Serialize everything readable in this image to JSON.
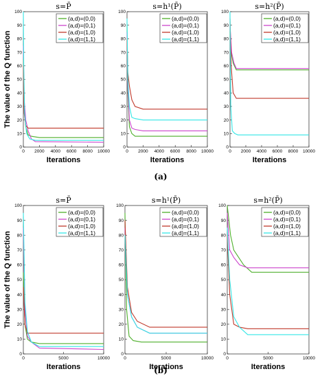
{
  "figure": {
    "ylabel": "The value of the Q function",
    "captions": [
      "(a)",
      "(b)"
    ]
  },
  "colors": {
    "(a,d)=(0,0)": "#4daf2a",
    "(a,d)=(0,1)": "#cc44cc",
    "(a,d)=(1,0)": "#c0392b",
    "(a,d)=(1,1)": "#33e6e6"
  },
  "chart_data": [
    {
      "type": "line",
      "title": "s=P̄",
      "xlabel": "Iterations",
      "ylabel": "The value of the Q function",
      "xlim": [
        0,
        10000
      ],
      "ylim": [
        0,
        100
      ],
      "xticks": [
        "0",
        "2000",
        "4000",
        "6000",
        "8000",
        "10000"
      ],
      "yticks": [
        "0",
        "10",
        "20",
        "30",
        "40",
        "50",
        "60",
        "70",
        "80",
        "90",
        "100"
      ],
      "legend": "top-right",
      "grid": false,
      "series": [
        {
          "name": "(a,d)=(0,0)",
          "x": [
            0,
            100,
            300,
            600,
            1000,
            2000,
            10000
          ],
          "y": [
            65,
            30,
            15,
            9,
            8,
            7,
            7
          ]
        },
        {
          "name": "(a,d)=(0,1)",
          "x": [
            0,
            100,
            300,
            600,
            1000,
            1500,
            10000
          ],
          "y": [
            75,
            35,
            20,
            12,
            6,
            4,
            3.5
          ]
        },
        {
          "name": "(a,d)=(1,0)",
          "x": [
            0,
            100,
            300,
            600,
            1000,
            1500,
            10000
          ],
          "y": [
            60,
            25,
            16,
            14,
            14,
            14,
            14
          ]
        },
        {
          "name": "(a,d)=(1,1)",
          "x": [
            0,
            50,
            150,
            400,
            800,
            1500,
            10000
          ],
          "y": [
            100,
            60,
            25,
            10,
            6,
            5,
            5
          ]
        }
      ]
    },
    {
      "type": "line",
      "title": "s=h¹(P̄)",
      "xlabel": "Iterations",
      "ylabel": "",
      "xlim": [
        0,
        10000
      ],
      "ylim": [
        0,
        100
      ],
      "xticks": [
        "0",
        "2000",
        "4000",
        "6000",
        "8000",
        "10000"
      ],
      "yticks": [
        "0",
        "10",
        "20",
        "30",
        "40",
        "50",
        "60",
        "70",
        "80",
        "90",
        "100"
      ],
      "legend": "top-right",
      "grid": false,
      "series": [
        {
          "name": "(a,d)=(0,0)",
          "x": [
            0,
            100,
            300,
            600,
            1000,
            2000,
            10000
          ],
          "y": [
            90,
            40,
            15,
            10,
            8,
            8,
            8
          ]
        },
        {
          "name": "(a,d)=(0,1)",
          "x": [
            0,
            100,
            300,
            600,
            1000,
            2000,
            10000
          ],
          "y": [
            85,
            45,
            20,
            14,
            13,
            12,
            12
          ]
        },
        {
          "name": "(a,d)=(1,0)",
          "x": [
            0,
            100,
            300,
            600,
            1000,
            2000,
            10000
          ],
          "y": [
            80,
            55,
            45,
            35,
            30,
            28,
            28
          ]
        },
        {
          "name": "(a,d)=(1,1)",
          "x": [
            0,
            100,
            300,
            600,
            1000,
            2000,
            10000
          ],
          "y": [
            95,
            50,
            30,
            22,
            21,
            20,
            20
          ]
        }
      ]
    },
    {
      "type": "line",
      "title": "s=h²(P̄)",
      "xlabel": "Iterations",
      "ylabel": "",
      "xlim": [
        0,
        10000
      ],
      "ylim": [
        0,
        100
      ],
      "xticks": [
        "0",
        "2000",
        "4000",
        "6000",
        "8000",
        "10000"
      ],
      "yticks": [
        "0",
        "10",
        "20",
        "30",
        "40",
        "50",
        "60",
        "70",
        "80",
        "90",
        "100"
      ],
      "legend": "top-right",
      "grid": false,
      "series": [
        {
          "name": "(a,d)=(0,0)",
          "x": [
            0,
            150,
            400,
            800,
            10000
          ],
          "y": [
            85,
            70,
            62,
            57,
            57
          ]
        },
        {
          "name": "(a,d)=(0,1)",
          "x": [
            0,
            200,
            500,
            800,
            10000
          ],
          "y": [
            90,
            70,
            62,
            58,
            58
          ]
        },
        {
          "name": "(a,d)=(1,0)",
          "x": [
            0,
            150,
            400,
            800,
            10000
          ],
          "y": [
            95,
            60,
            40,
            36,
            36
          ]
        },
        {
          "name": "(a,d)=(1,1)",
          "x": [
            0,
            100,
            300,
            600,
            1000,
            10000
          ],
          "y": [
            100,
            30,
            12,
            10,
            9,
            9
          ]
        }
      ]
    },
    {
      "type": "line",
      "title": "s=P̄",
      "xlabel": "Iterations",
      "ylabel": "The value of the Q function",
      "xlim": [
        0,
        10000
      ],
      "ylim": [
        0,
        100
      ],
      "xticks": [
        "0",
        "5000",
        "10000"
      ],
      "yticks": [
        "0",
        "10",
        "20",
        "30",
        "40",
        "50",
        "60",
        "70",
        "80",
        "90",
        "100"
      ],
      "legend": "top-right",
      "grid": false,
      "series": [
        {
          "name": "(a,d)=(0,0)",
          "x": [
            0,
            200,
            500,
            1000,
            2000,
            10000
          ],
          "y": [
            55,
            20,
            10,
            8,
            7,
            7
          ]
        },
        {
          "name": "(a,d)=(0,1)",
          "x": [
            0,
            200,
            500,
            1000,
            2000,
            10000
          ],
          "y": [
            85,
            30,
            12,
            8,
            4,
            3
          ]
        },
        {
          "name": "(a,d)=(1,0)",
          "x": [
            0,
            200,
            500,
            1000,
            2000,
            10000
          ],
          "y": [
            45,
            20,
            14,
            14,
            14,
            14
          ]
        },
        {
          "name": "(a,d)=(1,1)",
          "x": [
            0,
            200,
            500,
            1000,
            2000,
            10000
          ],
          "y": [
            95,
            35,
            15,
            8,
            5,
            5
          ]
        }
      ]
    },
    {
      "type": "line",
      "title": "s=h¹(P̄)",
      "xlabel": "Iterations",
      "ylabel": "",
      "xlim": [
        0,
        10000
      ],
      "ylim": [
        0,
        100
      ],
      "xticks": [
        "0",
        "5000",
        "10000"
      ],
      "yticks": [
        "0",
        "10",
        "20",
        "30",
        "40",
        "50",
        "60",
        "70",
        "80",
        "90",
        "100"
      ],
      "legend": "top-right",
      "grid": false,
      "series": [
        {
          "name": "(a,d)=(0,0)",
          "x": [
            0,
            200,
            500,
            1000,
            2000,
            10000
          ],
          "y": [
            95,
            30,
            12,
            9,
            8,
            8
          ]
        },
        {
          "name": "(a,d)=(0,1)",
          "x": [
            0,
            300,
            800,
            1500,
            3000,
            10000
          ],
          "y": [
            85,
            40,
            25,
            18,
            14,
            14
          ]
        },
        {
          "name": "(a,d)=(1,0)",
          "x": [
            0,
            300,
            800,
            1500,
            3000,
            10000
          ],
          "y": [
            90,
            45,
            28,
            22,
            18,
            18
          ]
        },
        {
          "name": "(a,d)=(1,1)",
          "x": [
            0,
            300,
            800,
            1500,
            3000,
            10000
          ],
          "y": [
            80,
            40,
            25,
            18,
            14,
            14
          ]
        }
      ]
    },
    {
      "type": "line",
      "title": "s=h²(P̄)",
      "xlabel": "Iterations",
      "ylabel": "",
      "xlim": [
        0,
        10000
      ],
      "ylim": [
        0,
        100
      ],
      "xticks": [
        "0",
        "5000",
        "10000"
      ],
      "yticks": [
        "0",
        "10",
        "20",
        "30",
        "40",
        "50",
        "60",
        "70",
        "80",
        "90",
        "100"
      ],
      "legend": "top-right",
      "grid": false,
      "series": [
        {
          "name": "(a,d)=(0,0)",
          "x": [
            0,
            400,
            800,
            2000,
            3000,
            10000
          ],
          "y": [
            100,
            80,
            70,
            60,
            55,
            55
          ]
        },
        {
          "name": "(a,d)=(0,1)",
          "x": [
            0,
            300,
            800,
            1500,
            2500,
            10000
          ],
          "y": [
            95,
            70,
            65,
            60,
            58,
            58
          ]
        },
        {
          "name": "(a,d)=(1,0)",
          "x": [
            0,
            300,
            800,
            1500,
            2500,
            10000
          ],
          "y": [
            80,
            40,
            20,
            18,
            17,
            17
          ]
        },
        {
          "name": "(a,d)=(1,1)",
          "x": [
            0,
            300,
            800,
            1500,
            2500,
            10000
          ],
          "y": [
            85,
            50,
            25,
            18,
            13,
            13
          ]
        }
      ]
    }
  ]
}
